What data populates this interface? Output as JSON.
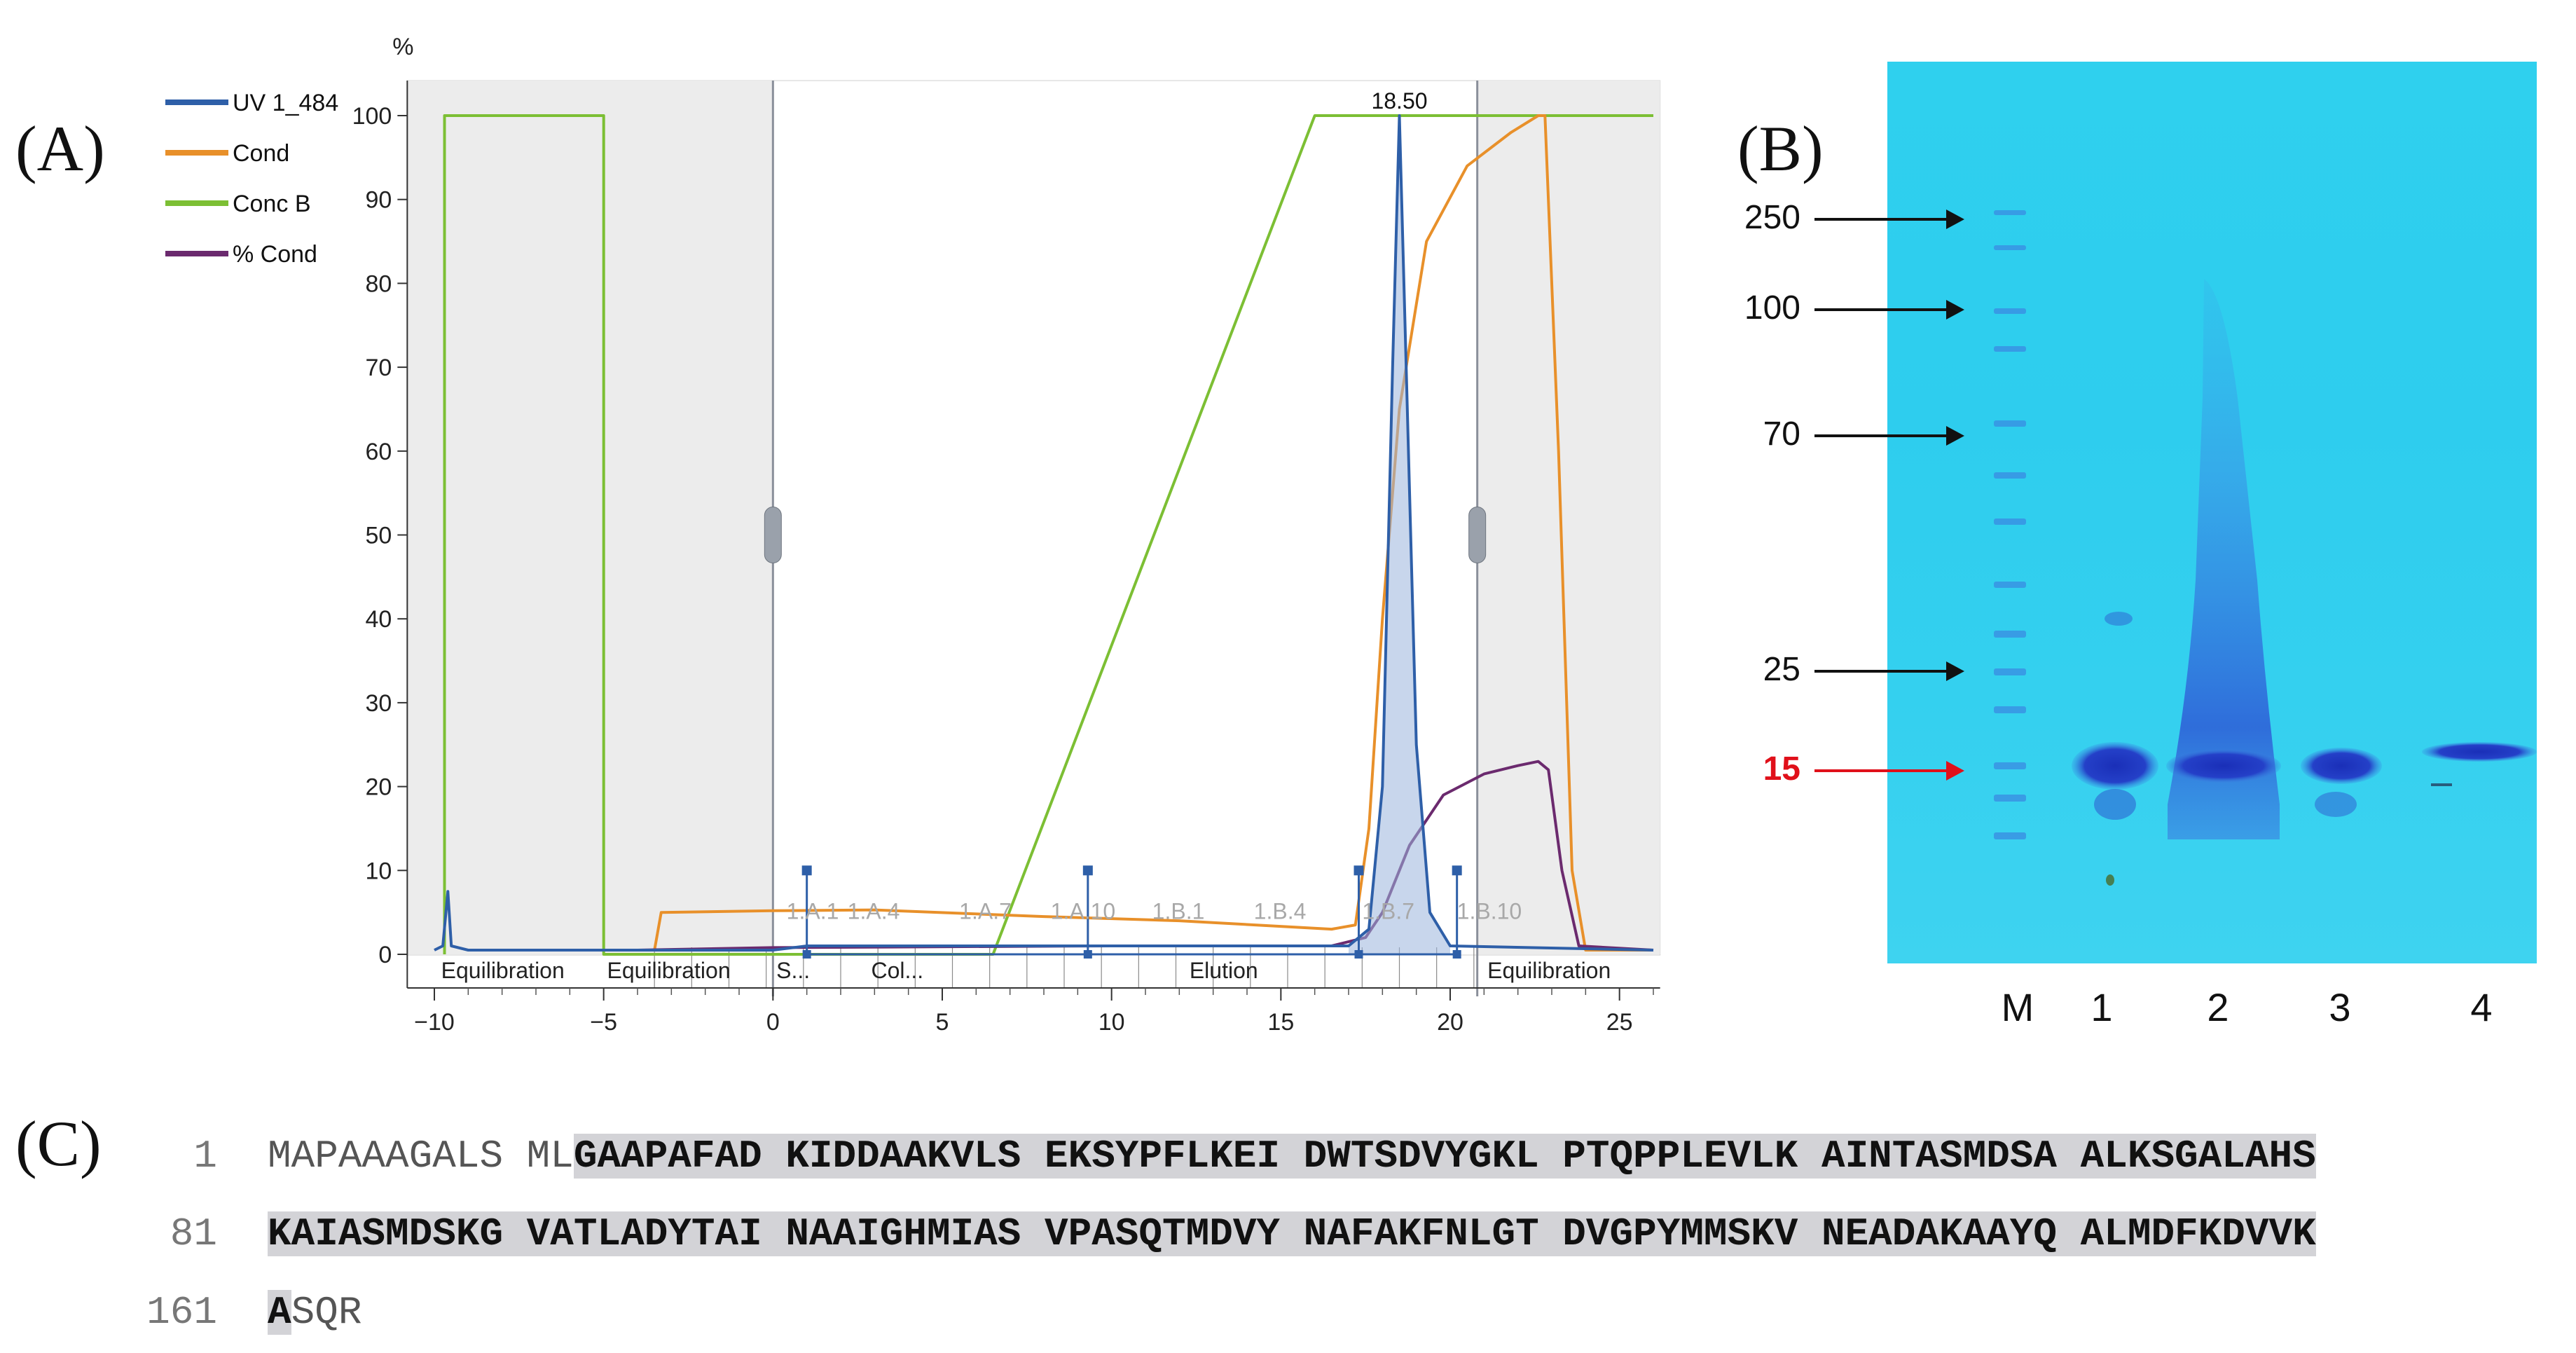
{
  "panels": {
    "a": "(A)",
    "b": "(B)",
    "c": "(C)"
  },
  "chart_data": {
    "type": "line",
    "y_unit_label": "%",
    "xlim": [
      -10,
      26
    ],
    "ylim": [
      0,
      100
    ],
    "x_ticks": [
      -10,
      -5,
      0,
      5,
      10,
      15,
      20,
      25
    ],
    "y_ticks": [
      0,
      10,
      20,
      30,
      40,
      50,
      60,
      70,
      80,
      90,
      100
    ],
    "peak_label": "18.50",
    "peak_x": 18.5,
    "legend": [
      {
        "name": "UV 1_484",
        "color": "#2e5fa8"
      },
      {
        "name": "Cond",
        "color": "#e8902a"
      },
      {
        "name": "Conc B",
        "color": "#7cbf34"
      },
      {
        "name": "% Cond",
        "color": "#6b2a6e"
      }
    ],
    "series": [
      {
        "name": "Conc B",
        "color": "#7cbf34",
        "points": [
          [
            -9.7,
            0
          ],
          [
            -9.7,
            100
          ],
          [
            -5,
            100
          ],
          [
            -5,
            0
          ],
          [
            6.5,
            0
          ],
          [
            16,
            100
          ],
          [
            26,
            100
          ]
        ]
      },
      {
        "name": "Cond",
        "color": "#e8902a",
        "points": [
          [
            -3.5,
            0.5
          ],
          [
            -3.3,
            5
          ],
          [
            0,
            5.2
          ],
          [
            3,
            5.3
          ],
          [
            8,
            4.5
          ],
          [
            12,
            4
          ],
          [
            16.5,
            3
          ],
          [
            17.2,
            3.5
          ],
          [
            17.6,
            15
          ],
          [
            18,
            40
          ],
          [
            18.5,
            65
          ],
          [
            19.3,
            85
          ],
          [
            20.5,
            94
          ],
          [
            21.8,
            98
          ],
          [
            22.6,
            100
          ],
          [
            22.8,
            100
          ],
          [
            23.2,
            60
          ],
          [
            23.6,
            10
          ],
          [
            24,
            0.5
          ],
          [
            26,
            0.5
          ]
        ]
      },
      {
        "name": "% Cond",
        "color": "#6b2a6e",
        "points": [
          [
            -4,
            0.5
          ],
          [
            0,
            0.8
          ],
          [
            10,
            1
          ],
          [
            16.5,
            1
          ],
          [
            17.5,
            2
          ],
          [
            18,
            5
          ],
          [
            18.8,
            13
          ],
          [
            19.8,
            19
          ],
          [
            21,
            21.5
          ],
          [
            22,
            22.5
          ],
          [
            22.6,
            23
          ],
          [
            22.9,
            22
          ],
          [
            23.3,
            10
          ],
          [
            23.8,
            1
          ],
          [
            26,
            0.5
          ]
        ]
      },
      {
        "name": "UV 1_484",
        "color": "#2e5fa8",
        "points": [
          [
            -10,
            0.5
          ],
          [
            -9.75,
            1
          ],
          [
            -9.6,
            7.5
          ],
          [
            -9.5,
            1
          ],
          [
            -9,
            0.5
          ],
          [
            0,
            0.5
          ],
          [
            1,
            1
          ],
          [
            6,
            1
          ],
          [
            17,
            1
          ],
          [
            17.6,
            3
          ],
          [
            18,
            20
          ],
          [
            18.3,
            70
          ],
          [
            18.5,
            100
          ],
          [
            18.7,
            70
          ],
          [
            19,
            25
          ],
          [
            19.4,
            5
          ],
          [
            20,
            1
          ],
          [
            26,
            0.5
          ]
        ]
      }
    ],
    "region_labels": [
      {
        "x": -9.8,
        "text": "Equilibration"
      },
      {
        "x": -4.9,
        "text": "Equilibration"
      },
      {
        "x": 0.1,
        "text": "S..."
      },
      {
        "x": 2.9,
        "text": "Col..."
      },
      {
        "x": 12.3,
        "text": "Elution"
      },
      {
        "x": 21.1,
        "text": "Equilibration"
      }
    ],
    "fraction_labels": [
      {
        "x": 0.4,
        "text": "1.A.1"
      },
      {
        "x": 2.2,
        "text": "1.A.4"
      },
      {
        "x": 5.5,
        "text": "1.A.7"
      },
      {
        "x": 8.2,
        "text": "1.A.10"
      },
      {
        "x": 11.2,
        "text": "1.B.1"
      },
      {
        "x": 14.2,
        "text": "1.B.4"
      },
      {
        "x": 17.4,
        "text": "1.B.7"
      },
      {
        "x": 20.2,
        "text": "1.B.10"
      }
    ],
    "fraction_markers": [
      1,
      9.3,
      17.3,
      20.2
    ]
  },
  "gel": {
    "markers": [
      {
        "label": "250",
        "pos": 0.175,
        "red": false
      },
      {
        "label": "100",
        "pos": 0.275,
        "red": false
      },
      {
        "label": "70",
        "pos": 0.415,
        "red": false
      },
      {
        "label": "25",
        "pos": 0.676,
        "red": false
      },
      {
        "label": "15",
        "pos": 0.786,
        "red": true
      }
    ],
    "lanes": [
      "M",
      "1",
      "2",
      "3",
      "4"
    ]
  },
  "sequence": [
    {
      "num": "1",
      "plain": "MAPAAAGALS ML",
      "highlight": "GAAPAFAD KIDDAAKVLS EKSYPFLKEI DWTSDVYGKL PTQPPLEVLK AINTASMDSA ALKSGALAHS"
    },
    {
      "num": "81",
      "plain": "",
      "highlight": "KAIASMDSKG VATLADYTAI NAAIGHMIAS VPASQTMDVY NAFAKFNLGT DVGPYMMSKV NEADAKAAYQ ALMDFKDVVK"
    },
    {
      "num": "161",
      "plain": "",
      "highlight": "A",
      "tail": "SQR"
    }
  ]
}
